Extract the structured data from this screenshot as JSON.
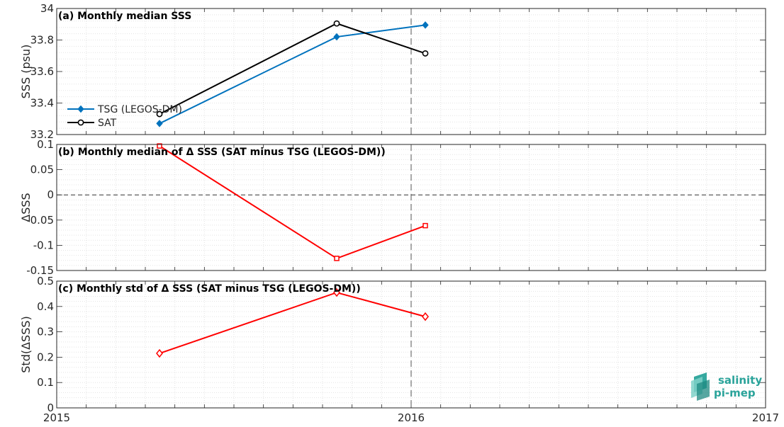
{
  "chart_data": [
    {
      "type": "line",
      "title": "(a) Monthly median SSS",
      "xlabel": "",
      "ylabel": "SSS (psu)",
      "xlim": [
        2015.0,
        2017.0
      ],
      "ylim": [
        33.2,
        34.0
      ],
      "yticks": [
        "33.2",
        "33.4",
        "33.6",
        "33.8",
        "34"
      ],
      "legend": "left",
      "series": [
        {
          "name": "TSG (LEGOS-DM)",
          "color": "#0072bd",
          "marker": "diamond-filled",
          "x": [
            2015.29,
            2015.79,
            2016.04
          ],
          "y": [
            33.27,
            33.82,
            33.895
          ]
        },
        {
          "name": "SAT",
          "color": "#000000",
          "marker": "circle-open",
          "x": [
            2015.29,
            2015.79,
            2016.04
          ],
          "y": [
            33.33,
            33.905,
            33.715
          ]
        }
      ]
    },
    {
      "type": "line",
      "title": "(b) Monthly median of Δ SSS (SAT minus TSG (LEGOS-DM))",
      "xlabel": "",
      "ylabel": "ΔSSS",
      "xlim": [
        2015.0,
        2017.0
      ],
      "ylim": [
        -0.15,
        0.1
      ],
      "yticks": [
        "-0.15",
        "-0.1",
        "-0.05",
        "0",
        "0.05",
        "0.1"
      ],
      "zero_line": true,
      "series": [
        {
          "color": "#ff0000",
          "marker": "square-open",
          "x": [
            2015.29,
            2015.79,
            2016.04
          ],
          "y": [
            0.097,
            -0.126,
            -0.061
          ]
        }
      ]
    },
    {
      "type": "line",
      "title": "(c) Monthly std of Δ SSS (SAT minus TSG (LEGOS-DM))",
      "xlabel": "",
      "ylabel": "Std(ΔSSS)",
      "xlim": [
        2015.0,
        2017.0
      ],
      "ylim": [
        0,
        0.5
      ],
      "yticks": [
        "0",
        "0.1",
        "0.2",
        "0.3",
        "0.4",
        "0.5"
      ],
      "xticks": [
        "2015",
        "2016",
        "2017"
      ],
      "series": [
        {
          "color": "#ff0000",
          "marker": "diamond-open",
          "x": [
            2015.29,
            2015.79,
            2016.04
          ],
          "y": [
            0.215,
            0.455,
            0.36
          ]
        }
      ]
    }
  ],
  "year_marker": 2016.0,
  "logo": {
    "line1": "salinity",
    "line2": "pi-mep",
    "color": "#2aa39a"
  }
}
